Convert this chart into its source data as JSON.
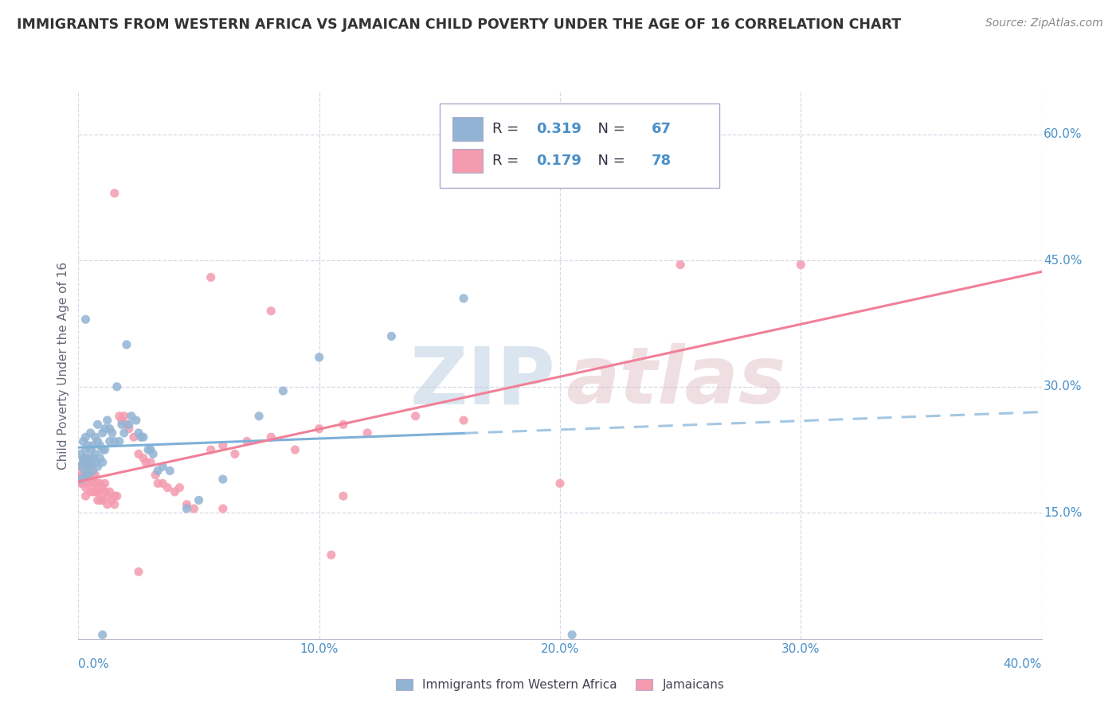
{
  "title": "IMMIGRANTS FROM WESTERN AFRICA VS JAMAICAN CHILD POVERTY UNDER THE AGE OF 16 CORRELATION CHART",
  "source": "Source: ZipAtlas.com",
  "ylabel": "Child Poverty Under the Age of 16",
  "xlim": [
    0.0,
    0.4
  ],
  "ylim": [
    0.0,
    0.65
  ],
  "xtick_vals": [
    0.0,
    0.1,
    0.2,
    0.3,
    0.4
  ],
  "xticklabels": [
    "0.0%",
    "10.0%",
    "20.0%",
    "30.0%",
    "40.0%"
  ],
  "ytick_vals": [
    0.15,
    0.3,
    0.45,
    0.6
  ],
  "ytick_labels": [
    "15.0%",
    "30.0%",
    "45.0%",
    "60.0%"
  ],
  "color_blue": "#92B4D4",
  "color_pink": "#F49BB0",
  "color_blue_line": "#7EB0D8",
  "color_pink_line": "#F08098",
  "color_text_blue": "#4A90C8",
  "R_blue": 0.319,
  "N_blue": 67,
  "R_pink": 0.179,
  "N_pink": 78,
  "bg_color": "#FFFFFF",
  "grid_color": "#D8D8E8",
  "title_color": "#333333",
  "blue_scatter_x": [
    0.001,
    0.001,
    0.001,
    0.002,
    0.002,
    0.002,
    0.003,
    0.003,
    0.003,
    0.003,
    0.003,
    0.004,
    0.004,
    0.004,
    0.004,
    0.005,
    0.005,
    0.005,
    0.006,
    0.006,
    0.006,
    0.007,
    0.007,
    0.007,
    0.008,
    0.008,
    0.008,
    0.009,
    0.009,
    0.01,
    0.01,
    0.01,
    0.011,
    0.011,
    0.012,
    0.013,
    0.013,
    0.014,
    0.015,
    0.016,
    0.017,
    0.018,
    0.019,
    0.02,
    0.021,
    0.022,
    0.024,
    0.025,
    0.026,
    0.027,
    0.029,
    0.03,
    0.031,
    0.033,
    0.035,
    0.038,
    0.045,
    0.05,
    0.06,
    0.075,
    0.085,
    0.1,
    0.13,
    0.16,
    0.003,
    0.01,
    0.205
  ],
  "blue_scatter_y": [
    0.205,
    0.22,
    0.19,
    0.215,
    0.235,
    0.21,
    0.225,
    0.21,
    0.24,
    0.2,
    0.195,
    0.215,
    0.23,
    0.205,
    0.195,
    0.245,
    0.225,
    0.21,
    0.23,
    0.215,
    0.2,
    0.24,
    0.22,
    0.21,
    0.255,
    0.235,
    0.205,
    0.23,
    0.215,
    0.245,
    0.225,
    0.21,
    0.25,
    0.225,
    0.26,
    0.25,
    0.235,
    0.245,
    0.235,
    0.3,
    0.235,
    0.255,
    0.245,
    0.35,
    0.255,
    0.265,
    0.26,
    0.245,
    0.24,
    0.24,
    0.225,
    0.225,
    0.22,
    0.2,
    0.205,
    0.2,
    0.155,
    0.165,
    0.19,
    0.265,
    0.295,
    0.335,
    0.36,
    0.405,
    0.38,
    0.005,
    0.005
  ],
  "pink_scatter_x": [
    0.001,
    0.001,
    0.001,
    0.002,
    0.002,
    0.002,
    0.003,
    0.003,
    0.003,
    0.003,
    0.004,
    0.004,
    0.004,
    0.005,
    0.005,
    0.005,
    0.006,
    0.006,
    0.006,
    0.007,
    0.007,
    0.007,
    0.008,
    0.008,
    0.008,
    0.009,
    0.009,
    0.009,
    0.01,
    0.01,
    0.011,
    0.011,
    0.012,
    0.012,
    0.013,
    0.014,
    0.015,
    0.015,
    0.016,
    0.017,
    0.018,
    0.019,
    0.02,
    0.021,
    0.023,
    0.025,
    0.027,
    0.028,
    0.03,
    0.032,
    0.033,
    0.035,
    0.037,
    0.04,
    0.042,
    0.045,
    0.048,
    0.055,
    0.06,
    0.065,
    0.07,
    0.08,
    0.09,
    0.1,
    0.11,
    0.12,
    0.14,
    0.16,
    0.2,
    0.25,
    0.3,
    0.015,
    0.055,
    0.08,
    0.105,
    0.025,
    0.06,
    0.11
  ],
  "pink_scatter_y": [
    0.205,
    0.195,
    0.185,
    0.21,
    0.195,
    0.185,
    0.195,
    0.215,
    0.18,
    0.17,
    0.21,
    0.195,
    0.185,
    0.205,
    0.19,
    0.175,
    0.195,
    0.185,
    0.175,
    0.195,
    0.185,
    0.175,
    0.185,
    0.175,
    0.165,
    0.185,
    0.175,
    0.165,
    0.18,
    0.165,
    0.185,
    0.175,
    0.17,
    0.16,
    0.175,
    0.165,
    0.17,
    0.16,
    0.17,
    0.265,
    0.26,
    0.265,
    0.255,
    0.25,
    0.24,
    0.22,
    0.215,
    0.21,
    0.21,
    0.195,
    0.185,
    0.185,
    0.18,
    0.175,
    0.18,
    0.16,
    0.155,
    0.225,
    0.23,
    0.22,
    0.235,
    0.24,
    0.225,
    0.25,
    0.255,
    0.245,
    0.265,
    0.26,
    0.185,
    0.445,
    0.445,
    0.53,
    0.43,
    0.39,
    0.1,
    0.08,
    0.155,
    0.17
  ]
}
